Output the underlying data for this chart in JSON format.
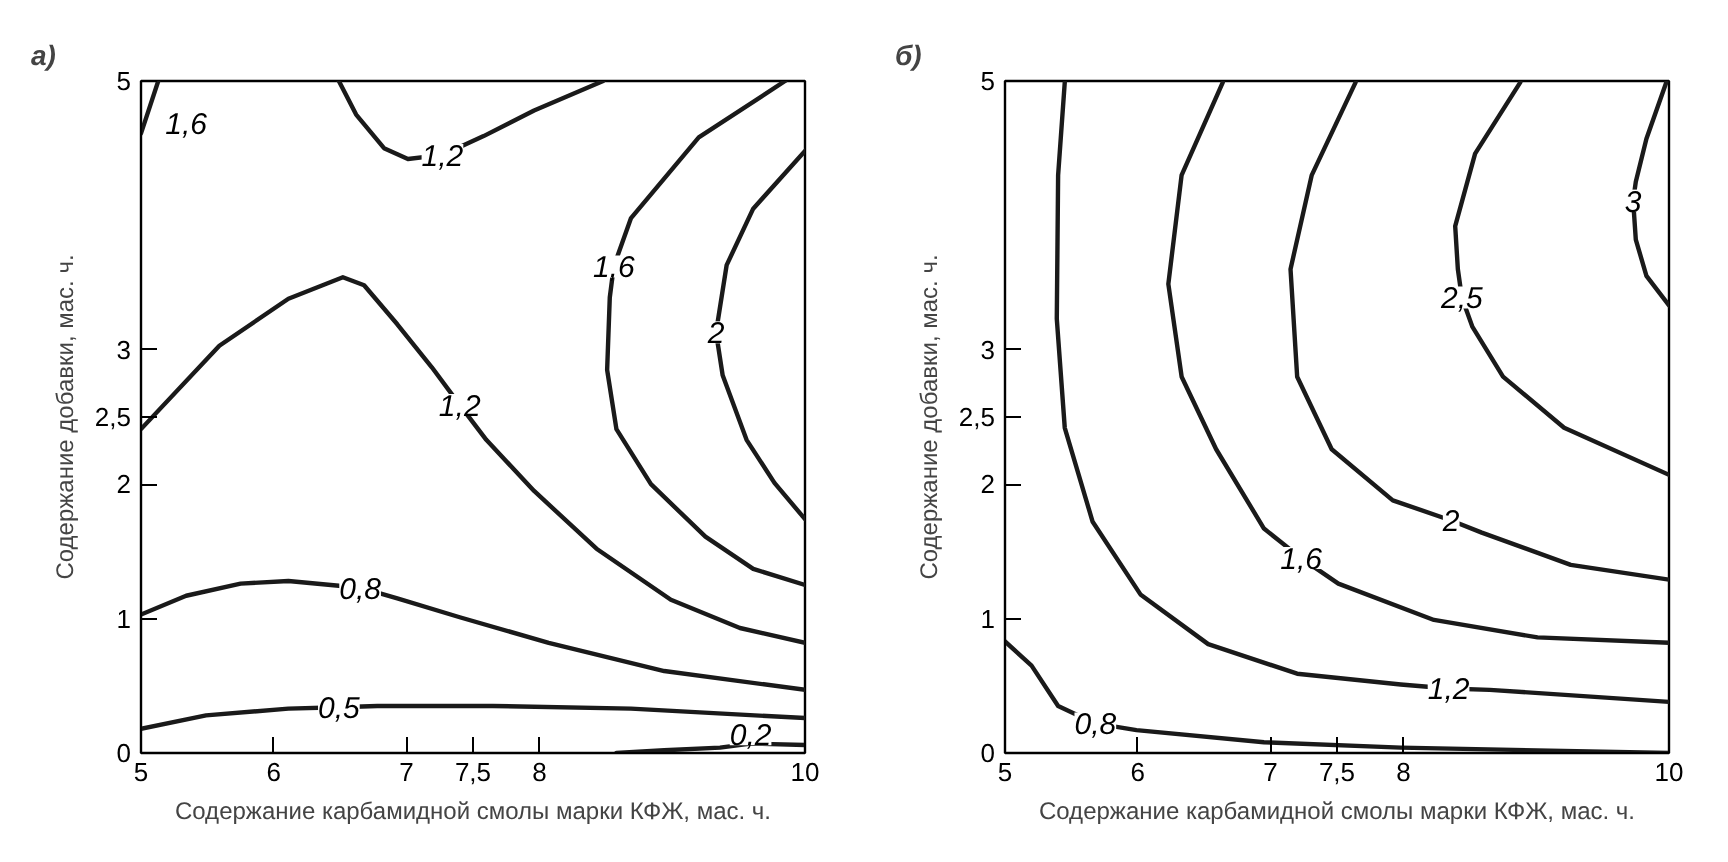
{
  "chart_data": [
    {
      "type": "line",
      "title": "а)",
      "xlabel": "Содержание карбамидной смолы марки КФЖ, мас. ч.",
      "ylabel": "Содержание добавки, мас. ч.",
      "xlim": [
        5,
        10
      ],
      "ylim": [
        0,
        5
      ],
      "xticks": [
        5,
        6,
        7,
        {
          "value": 7.5,
          "label": "7,5"
        },
        8,
        10
      ],
      "yticks": [
        0,
        1,
        2,
        {
          "value": 2.5,
          "label": "2,5"
        },
        3,
        5
      ],
      "grid": false,
      "line_style": "solid",
      "series": [
        {
          "color": "#1a1a1a",
          "x": [
            5.0,
            5.13
          ],
          "values": [
            4.61,
            5.0
          ]
        },
        {
          "color": "#1a1a1a",
          "x": [
            6.49,
            6.62,
            6.83,
            7.01,
            7.27,
            7.58,
            7.96,
            8.48
          ],
          "values": [
            5.0,
            4.75,
            4.5,
            4.42,
            4.45,
            4.59,
            4.78,
            5.0
          ]
        },
        {
          "color": "#1a1a1a",
          "x": [
            5.0,
            5.59,
            6.11,
            6.52,
            6.68,
            6.93,
            7.19,
            7.4,
            7.6,
            7.96,
            8.43,
            8.99,
            9.51,
            10.0
          ],
          "values": [
            2.41,
            3.03,
            3.38,
            3.54,
            3.48,
            3.19,
            2.87,
            2.59,
            2.33,
            1.95,
            1.52,
            1.14,
            0.93,
            0.82
          ]
        },
        {
          "color": "#1a1a1a",
          "x": [
            9.85,
            9.2,
            8.69,
            8.56,
            8.53,
            8.51,
            8.58,
            8.84,
            9.25,
            9.61,
            10.0
          ],
          "values": [
            5.0,
            4.58,
            3.98,
            3.62,
            3.39,
            2.85,
            2.41,
            2.0,
            1.61,
            1.37,
            1.25
          ]
        },
        {
          "color": "#1a1a1a",
          "x": [
            10.0,
            9.61,
            9.41,
            9.33,
            9.38,
            9.56,
            9.77,
            10.0
          ],
          "values": [
            4.48,
            4.05,
            3.63,
            3.13,
            2.81,
            2.33,
            2.01,
            1.74
          ]
        },
        {
          "color": "#1a1a1a",
          "x": [
            5.0,
            5.34,
            5.75,
            6.11,
            6.65,
            6.93,
            7.4,
            8.07,
            8.94,
            10.0
          ],
          "values": [
            1.03,
            1.17,
            1.26,
            1.28,
            1.23,
            1.15,
            1.01,
            0.82,
            0.61,
            0.47
          ]
        },
        {
          "color": "#1a1a1a",
          "x": [
            5.0,
            5.49,
            6.11,
            6.49,
            6.78,
            7.65,
            8.69,
            10.0
          ],
          "values": [
            0.18,
            0.28,
            0.33,
            0.34,
            0.35,
            0.35,
            0.33,
            0.26
          ]
        },
        {
          "color": "#1a1a1a",
          "x": [
            8.58,
            8.94,
            9.36,
            9.59,
            10.0
          ],
          "values": [
            0.0,
            0.02,
            0.04,
            0.07,
            0.06
          ]
        }
      ],
      "annotations": [
        {
          "text": "1,6",
          "x": 5.34,
          "y": 4.69
        },
        {
          "text": "1,2",
          "x": 7.27,
          "y": 4.45
        },
        {
          "text": "1,2",
          "x": 7.4,
          "y": 2.59
        },
        {
          "text": "1,6",
          "x": 8.56,
          "y": 3.62
        },
        {
          "text": "2",
          "x": 9.33,
          "y": 3.13
        },
        {
          "text": "0,8",
          "x": 6.65,
          "y": 1.23
        },
        {
          "text": "0,5",
          "x": 6.49,
          "y": 0.34
        },
        {
          "text": "0,2",
          "x": 9.59,
          "y": 0.14
        }
      ]
    },
    {
      "type": "line",
      "title": "б)",
      "xlabel": "Содержание карбамидной смолы марки КФЖ, мас. ч.",
      "ylabel": "Содержание добавки, мас. ч.",
      "xlim": [
        5,
        10
      ],
      "ylim": [
        0,
        5
      ],
      "xticks": [
        5,
        6,
        7,
        {
          "value": 7.5,
          "label": "7,5"
        },
        8,
        10
      ],
      "yticks": [
        0,
        1,
        2,
        {
          "value": 2.5,
          "label": "2,5"
        },
        3,
        5
      ],
      "grid": false,
      "line_style": "solid",
      "series": [
        {
          "color": "#1a1a1a",
          "x": [
            5.0,
            5.2,
            5.4,
            5.68,
            5.99,
            6.95,
            7.98,
            10.0
          ],
          "values": [
            0.83,
            0.65,
            0.35,
            0.22,
            0.17,
            0.08,
            0.04,
            0.0
          ]
        },
        {
          "color": "#1a1a1a",
          "x": [
            5.45,
            5.4,
            5.39,
            5.45,
            5.66,
            6.02,
            6.53,
            7.2,
            7.98,
            8.34,
            8.65,
            10.0
          ],
          "values": [
            4.99,
            4.3,
            3.23,
            2.42,
            1.72,
            1.18,
            0.81,
            0.59,
            0.51,
            0.48,
            0.47,
            0.38
          ]
        },
        {
          "color": "#1a1a1a",
          "x": [
            6.64,
            6.33,
            6.23,
            6.33,
            6.59,
            6.95,
            7.23,
            7.51,
            8.23,
            9.01,
            10.0
          ],
          "values": [
            4.99,
            4.3,
            3.49,
            2.8,
            2.26,
            1.67,
            1.45,
            1.26,
            0.99,
            0.86,
            0.82
          ]
        },
        {
          "color": "#1a1a1a",
          "x": [
            7.64,
            7.31,
            7.15,
            7.2,
            7.46,
            7.92,
            8.36,
            8.59,
            9.26,
            10.0
          ],
          "values": [
            4.99,
            4.3,
            3.6,
            2.8,
            2.26,
            1.88,
            1.73,
            1.64,
            1.4,
            1.29
          ]
        },
        {
          "color": "#1a1a1a",
          "x": [
            8.88,
            8.54,
            8.39,
            8.41,
            8.44,
            8.52,
            8.75,
            9.21,
            10.0
          ],
          "values": [
            4.99,
            4.46,
            3.92,
            3.6,
            3.39,
            3.17,
            2.8,
            2.42,
            2.07
          ]
        },
        {
          "color": "#1a1a1a",
          "x": [
            9.98,
            9.83,
            9.75,
            9.73,
            9.75,
            9.83,
            10.0
          ],
          "values": [
            4.99,
            4.57,
            4.25,
            4.11,
            3.82,
            3.55,
            3.33
          ]
        }
      ],
      "annotations": [
        {
          "text": "0,8",
          "x": 5.68,
          "y": 0.22
        },
        {
          "text": "1,2",
          "x": 8.34,
          "y": 0.48
        },
        {
          "text": "1,6",
          "x": 7.23,
          "y": 1.45
        },
        {
          "text": "2",
          "x": 8.36,
          "y": 1.73
        },
        {
          "text": "2,5",
          "x": 8.44,
          "y": 3.39
        },
        {
          "text": "3",
          "x": 9.73,
          "y": 4.11
        }
      ]
    }
  ]
}
